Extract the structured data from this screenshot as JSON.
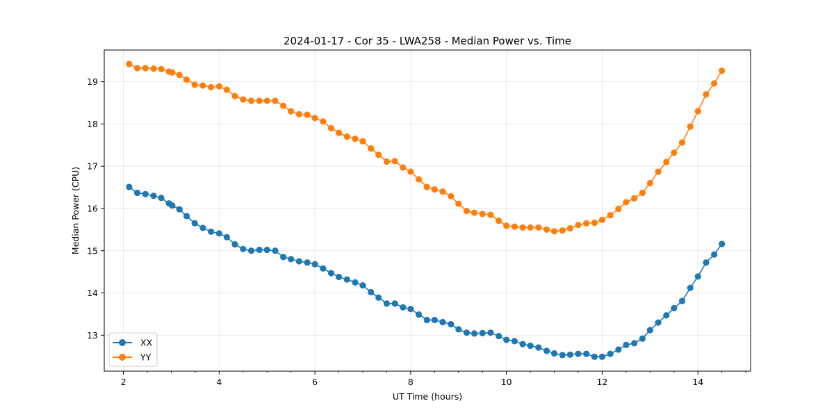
{
  "chart_data": {
    "type": "line",
    "title": "2024-01-17 - Cor 35 - LWA258 - Median Power vs. Time",
    "xlabel": "UT Time (hours)",
    "ylabel": "Median Power (CPU)",
    "xlim": [
      1.6,
      15.1
    ],
    "ylim": [
      12.15,
      19.75
    ],
    "xticks": [
      2,
      4,
      6,
      8,
      10,
      12,
      14
    ],
    "yticks": [
      13,
      14,
      15,
      16,
      17,
      18,
      19
    ],
    "grid": true,
    "legend_position": "lower-left",
    "x": [
      2.12,
      2.29,
      2.46,
      2.63,
      2.79,
      2.95,
      3.02,
      3.17,
      3.32,
      3.49,
      3.66,
      3.83,
      4.0,
      4.16,
      4.33,
      4.5,
      4.67,
      4.84,
      5.0,
      5.17,
      5.34,
      5.5,
      5.67,
      5.84,
      6.0,
      6.17,
      6.34,
      6.5,
      6.67,
      6.84,
      7.0,
      7.17,
      7.33,
      7.5,
      7.67,
      7.84,
      8.0,
      8.17,
      8.34,
      8.5,
      8.67,
      8.84,
      9.0,
      9.17,
      9.33,
      9.5,
      9.67,
      9.84,
      10.0,
      10.17,
      10.34,
      10.5,
      10.67,
      10.84,
      11.0,
      11.17,
      11.33,
      11.5,
      11.67,
      11.84,
      12.0,
      12.17,
      12.34,
      12.5,
      12.67,
      12.84,
      13.0,
      13.17,
      13.34,
      13.5,
      13.67,
      13.84,
      14.0,
      14.17,
      14.34,
      14.5
    ],
    "series": [
      {
        "name": "XX",
        "color": "#1f77b4",
        "values": [
          16.51,
          16.37,
          16.34,
          16.3,
          16.25,
          16.12,
          16.07,
          15.98,
          15.82,
          15.65,
          15.54,
          15.45,
          15.41,
          15.32,
          15.15,
          15.04,
          15.0,
          15.02,
          15.02,
          15.0,
          14.85,
          14.8,
          14.75,
          14.72,
          14.68,
          14.58,
          14.47,
          14.38,
          14.32,
          14.25,
          14.18,
          14.02,
          13.89,
          13.75,
          13.75,
          13.66,
          13.62,
          13.49,
          13.36,
          13.36,
          13.31,
          13.26,
          13.14,
          13.06,
          13.04,
          13.05,
          13.06,
          12.98,
          12.89,
          12.86,
          12.79,
          12.75,
          12.71,
          12.63,
          12.57,
          12.53,
          12.54,
          12.56,
          12.56,
          12.49,
          12.49,
          12.56,
          12.66,
          12.77,
          12.81,
          12.92,
          13.12,
          13.3,
          13.47,
          13.64,
          13.81,
          14.12,
          14.39,
          14.72,
          14.91,
          15.16
        ]
      },
      {
        "name": "YY",
        "color": "#ff7f0e",
        "values": [
          19.42,
          19.32,
          19.32,
          19.31,
          19.3,
          19.24,
          19.22,
          19.16,
          19.05,
          18.93,
          18.91,
          18.87,
          18.89,
          18.81,
          18.66,
          18.58,
          18.55,
          18.55,
          18.55,
          18.55,
          18.43,
          18.3,
          18.23,
          18.22,
          18.14,
          18.06,
          17.9,
          17.79,
          17.7,
          17.65,
          17.59,
          17.42,
          17.27,
          17.11,
          17.12,
          16.97,
          16.87,
          16.69,
          16.51,
          16.45,
          16.4,
          16.29,
          16.11,
          15.94,
          15.9,
          15.87,
          15.85,
          15.71,
          15.59,
          15.57,
          15.55,
          15.55,
          15.55,
          15.5,
          15.46,
          15.48,
          15.53,
          15.61,
          15.65,
          15.66,
          15.73,
          15.84,
          15.99,
          16.15,
          16.24,
          16.37,
          16.6,
          16.87,
          17.1,
          17.32,
          17.56,
          17.94,
          18.3,
          18.7,
          18.96,
          19.26
        ]
      }
    ]
  }
}
